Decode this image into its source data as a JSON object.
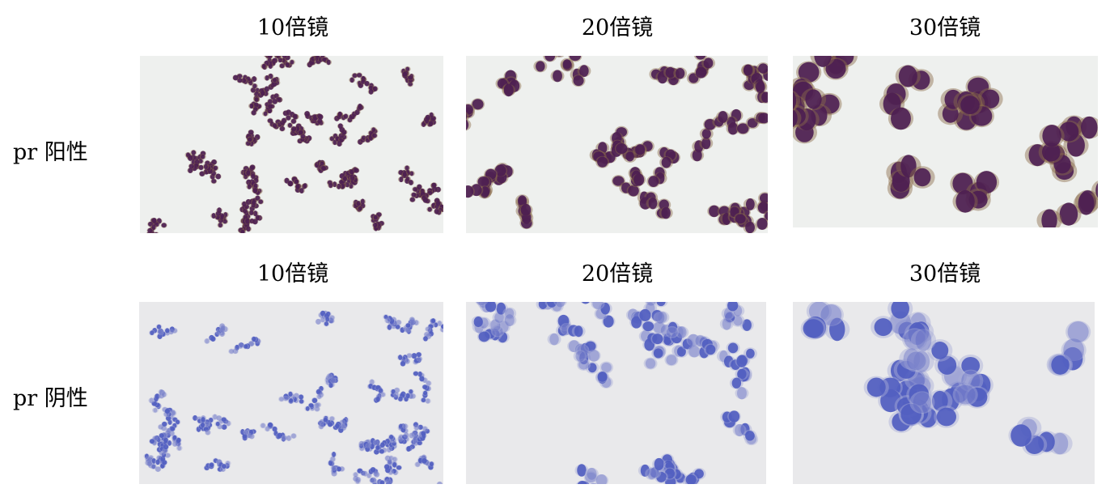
{
  "rows": [
    {
      "label": "pr 阳性",
      "stain": "positive",
      "colors": {
        "background": "#eef0ee",
        "nucleus": "#4b1d52",
        "cytoplasm": "#8a6a4a"
      },
      "panels": [
        {
          "title": "10倍镜"
        },
        {
          "title": "20倍镜"
        },
        {
          "title": "30倍镜"
        }
      ]
    },
    {
      "label": "pr 阴性",
      "stain": "negative",
      "colors": {
        "background": "#e9e9eb",
        "nucleus": "#4f5cc0",
        "cytoplasm": "#a9aed8"
      },
      "panels": [
        {
          "title": "10倍镜"
        },
        {
          "title": "20倍镜"
        },
        {
          "title": "30倍镜"
        }
      ]
    }
  ]
}
